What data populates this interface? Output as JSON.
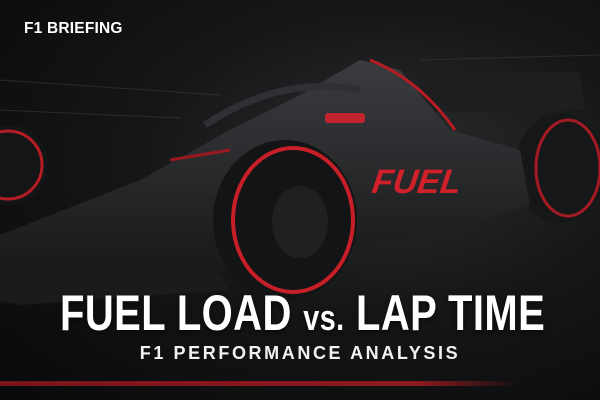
{
  "brand": "F1 BRIEFING",
  "title": {
    "part1": "FUEL LOAD",
    "vs": "vs.",
    "part2": "LAP TIME"
  },
  "subtitle": "F1 PERFORMANCE ANALYSIS",
  "car_livery_text": "FUEL",
  "colors": {
    "accent_red": "#d0202a",
    "background": "#0b0c0d",
    "text": "#ffffff"
  }
}
